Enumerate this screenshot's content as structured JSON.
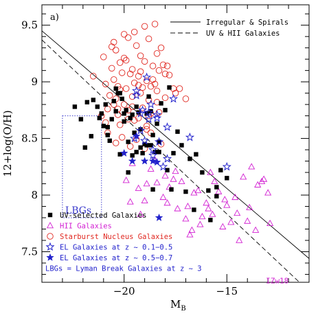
{
  "chart_data": {
    "type": "scatter",
    "panel_label": "a)",
    "xlabel_main": "M",
    "xlabel_sub": "B",
    "ylabel": "12+log(O/H)",
    "xlim": [
      -24.0,
      -11.0
    ],
    "ylim": [
      7.23,
      9.68
    ],
    "xticks": [
      -20,
      -15
    ],
    "xtick_labels": [
      "−20",
      "−15"
    ],
    "yticks": [
      7.5,
      8.0,
      8.5,
      9.0,
      9.5
    ],
    "ytick_labels": [
      "7.5",
      "8",
      "8.5",
      "9",
      "9.5"
    ],
    "grid": false,
    "legend_position": "bottom-left",
    "lines": [
      {
        "name": "Irregular & Spirals",
        "style": "solid",
        "x": [
          -24.0,
          -11.0
        ],
        "y": [
          9.45,
          7.44
        ]
      },
      {
        "name": "UV & HII Galaxies",
        "style": "dashed",
        "x": [
          -24.0,
          -11.0
        ],
        "y": [
          9.37,
          7.15
        ]
      }
    ],
    "lbg_region": {
      "label": "LBGs",
      "x": [
        -23.0,
        -21.1
      ],
      "y": [
        7.8,
        8.7
      ],
      "color": "#3b3bcc"
    },
    "annotations": [
      {
        "text": "IZw18",
        "x": -13.1,
        "y": 7.22,
        "color": "#d21fd2"
      }
    ],
    "legend_note": "LBGs = Lyman Break Galaxies at z ~ 3",
    "series": [
      {
        "name": "UV-selected Galaxies",
        "marker": "filled-square",
        "color": "#000000",
        "x": [
          -22.4,
          -22.1,
          -21.9,
          -21.8,
          -21.5,
          -21.3,
          -21.2,
          -21.1,
          -21.0,
          -20.9,
          -20.8,
          -20.7,
          -20.6,
          -20.5,
          -20.4,
          -20.3,
          -20.2,
          -20.1,
          -20.0,
          -19.9,
          -19.8,
          -19.7,
          -19.6,
          -19.5,
          -19.4,
          -19.3,
          -19.2,
          -19.1,
          -19.0,
          -18.9,
          -18.8,
          -18.7,
          -18.6,
          -18.5,
          -18.4,
          -18.3,
          -18.2,
          -18.0,
          -17.8,
          -17.6,
          -17.4,
          -17.2,
          -17.0,
          -16.8,
          -16.5,
          -16.2,
          -15.9,
          -15.5,
          -15.3,
          -15.0,
          -20.8,
          -20.4,
          -20.0,
          -19.6,
          -19.2,
          -18.7,
          -18.3,
          -17.9,
          -21.6,
          -20.2,
          -19.8,
          -19.4,
          -18.9,
          -18.6,
          -17.7,
          -16.6,
          -15.8,
          -15.5
        ],
        "y": [
          8.78,
          8.67,
          8.42,
          8.82,
          8.84,
          8.78,
          8.68,
          8.72,
          8.61,
          8.8,
          8.53,
          8.48,
          8.67,
          8.83,
          8.74,
          8.9,
          8.9,
          8.85,
          8.72,
          8.75,
          8.47,
          8.68,
          8.35,
          8.55,
          8.38,
          8.73,
          8.42,
          8.37,
          8.45,
          8.44,
          8.87,
          8.74,
          8.53,
          8.38,
          8.63,
          8.38,
          8.81,
          8.75,
          8.95,
          8.37,
          8.56,
          8.44,
          8.03,
          8.32,
          8.36,
          8.2,
          8.04,
          8.07,
          8.22,
          8.15,
          8.6,
          8.94,
          8.65,
          8.71,
          8.58,
          8.44,
          8.47,
          8.22,
          8.52,
          8.36,
          8.2,
          8.78,
          8.72,
          8.05,
          8.05,
          7.87,
          7.78,
          7.99
        ]
      },
      {
        "name": "HII Galaxies",
        "marker": "open-triangle",
        "color": "#d21fd2",
        "x": [
          -19.9,
          -19.6,
          -19.3,
          -19.0,
          -18.7,
          -18.4,
          -18.1,
          -17.8,
          -17.5,
          -17.2,
          -16.9,
          -16.6,
          -16.3,
          -16.0,
          -15.7,
          -15.4,
          -15.1,
          -14.8,
          -14.5,
          -14.2,
          -13.9,
          -13.6,
          -13.3,
          -13.0,
          -19.7,
          -19.2,
          -18.5,
          -18.0,
          -17.4,
          -16.8,
          -16.2,
          -15.6,
          -15.0,
          -14.4,
          -13.8,
          -13.2,
          -18.9,
          -17.9,
          -17.0,
          -16.4,
          -15.8,
          -15.2,
          -14.6,
          -14.0,
          -13.5,
          -12.9,
          -17.6,
          -16.7,
          -15.9
        ],
        "y": [
          8.13,
          8.28,
          8.06,
          7.95,
          8.23,
          8.11,
          7.98,
          8.07,
          8.21,
          8.12,
          7.9,
          8.02,
          7.74,
          7.93,
          7.83,
          8.03,
          7.96,
          7.76,
          7.84,
          8.16,
          7.89,
          7.69,
          8.12,
          8.02,
          7.94,
          7.83,
          8.31,
          8.17,
          7.88,
          7.65,
          7.81,
          8.12,
          7.91,
          7.6,
          8.25,
          8.14,
          8.1,
          7.93,
          7.79,
          8.04,
          8.2,
          7.72,
          7.98,
          7.77,
          8.09,
          7.75,
          8.14,
          7.69,
          7.88
        ]
      },
      {
        "name": "Starburst Nucleus Galaxies",
        "marker": "open-circle",
        "color": "#e0261f",
        "x": [
          -20.6,
          -20.4,
          -20.2,
          -20.0,
          -19.8,
          -19.6,
          -19.4,
          -19.2,
          -19.0,
          -18.8,
          -18.6,
          -18.4,
          -18.2,
          -18.0,
          -17.8,
          -20.5,
          -20.3,
          -20.1,
          -19.9,
          -19.7,
          -19.5,
          -19.3,
          -19.1,
          -18.9,
          -18.7,
          -18.5,
          -18.3,
          -18.1,
          -17.9,
          -20.7,
          -20.4,
          -20.0,
          -19.6,
          -19.2,
          -18.8,
          -18.4,
          -18.0,
          -17.6,
          -20.8,
          -20.3,
          -19.8,
          -19.3,
          -18.8,
          -18.3,
          -20.9,
          -20.2,
          -19.5,
          -18.9,
          -21.5,
          -21.0,
          -20.5,
          -20.0,
          -19.5,
          -19.0,
          -18.5,
          -20.6,
          -19.9,
          -19.2,
          -18.6,
          -20.8,
          -20.1,
          -19.4,
          -18.7,
          -20.4,
          -19.7,
          -19.0,
          -18.2,
          -19.8,
          -18.9,
          -17.3,
          -21.1,
          -20.3,
          -19.6,
          -18.7,
          -20.9,
          -20.2,
          -19.3,
          -18.4,
          -20.5,
          -19.1,
          -17.5,
          -17.0
        ],
        "y": [
          9.31,
          9.28,
          9.17,
          9.21,
          9.39,
          9.11,
          9.32,
          9.23,
          9.18,
          9.38,
          9.14,
          9.25,
          9.3,
          9.07,
          9.06,
          9.02,
          8.96,
          9.08,
          8.94,
          9.07,
          8.99,
          9.05,
          8.95,
          9.01,
          8.96,
          8.98,
          9.1,
          9.15,
          9.14,
          8.88,
          8.85,
          8.8,
          8.87,
          8.9,
          8.84,
          8.82,
          8.86,
          8.94,
          8.76,
          8.71,
          8.75,
          8.68,
          8.7,
          8.73,
          8.64,
          8.62,
          8.66,
          8.58,
          9.05,
          9.22,
          9.35,
          9.42,
          9.44,
          9.49,
          9.51,
          9.12,
          9.19,
          9.09,
          9.02,
          8.55,
          8.51,
          8.49,
          8.55,
          8.46,
          8.43,
          8.41,
          8.45,
          8.67,
          8.61,
          8.94,
          8.7,
          8.76,
          8.78,
          8.72,
          8.98,
          8.93,
          8.97,
          8.92,
          8.8,
          8.77,
          8.9,
          8.85
        ]
      },
      {
        "name": "EL Galaxies at z ~ 0.1−0.5",
        "marker": "open-star",
        "color": "#2222cc",
        "x": [
          -19.5,
          -18.6,
          -18.1,
          -17.9,
          -18.3,
          -18.6,
          -19.0,
          -19.2,
          -18.8,
          -18.4,
          -18.7,
          -19.4,
          -18.8,
          -17.9,
          -19.4,
          -18.9,
          -16.8,
          -15.0,
          -19.2,
          -18.4,
          -19.1,
          -17.6
        ],
        "y": [
          8.5,
          8.35,
          8.25,
          8.32,
          8.47,
          8.4,
          8.48,
          8.72,
          8.73,
          8.71,
          8.8,
          8.88,
          8.67,
          8.6,
          8.92,
          9.04,
          8.51,
          8.25,
          8.57,
          8.68,
          8.75,
          8.85
        ]
      },
      {
        "name": "EL Galaxies at z ~ 0.5−0.7",
        "marker": "filled-star",
        "color": "#2222cc",
        "x": [
          -20.0,
          -19.6,
          -19.0,
          -18.6,
          -18.4,
          -19.4,
          -18.3
        ],
        "y": [
          8.37,
          8.3,
          8.3,
          8.3,
          8.29,
          8.52,
          7.8
        ]
      }
    ]
  }
}
